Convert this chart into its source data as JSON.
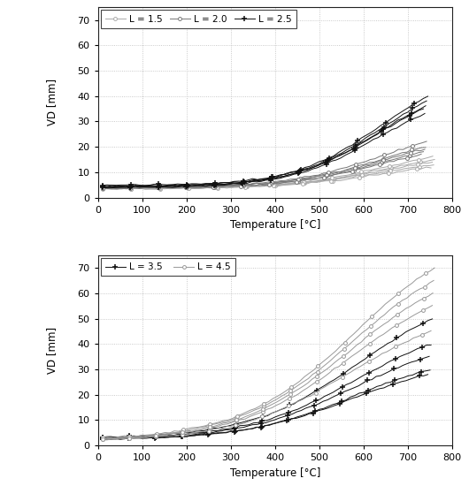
{
  "ylabel": "VD [mm]",
  "xlabel": "Temperature [°C]",
  "xlim": [
    0,
    800
  ],
  "ylim": [
    0,
    75
  ],
  "yticks": [
    0,
    10,
    20,
    30,
    40,
    50,
    60,
    70
  ],
  "xticks": [
    0,
    100,
    200,
    300,
    400,
    500,
    600,
    700,
    800
  ],
  "top_legend": [
    "L = 1.5",
    "L = 2.0",
    "L = 2.5"
  ],
  "bot_legend": [
    "L = 3.5",
    "L = 4.5"
  ],
  "background": "#ffffff",
  "grid_color": "#bbbbbb"
}
